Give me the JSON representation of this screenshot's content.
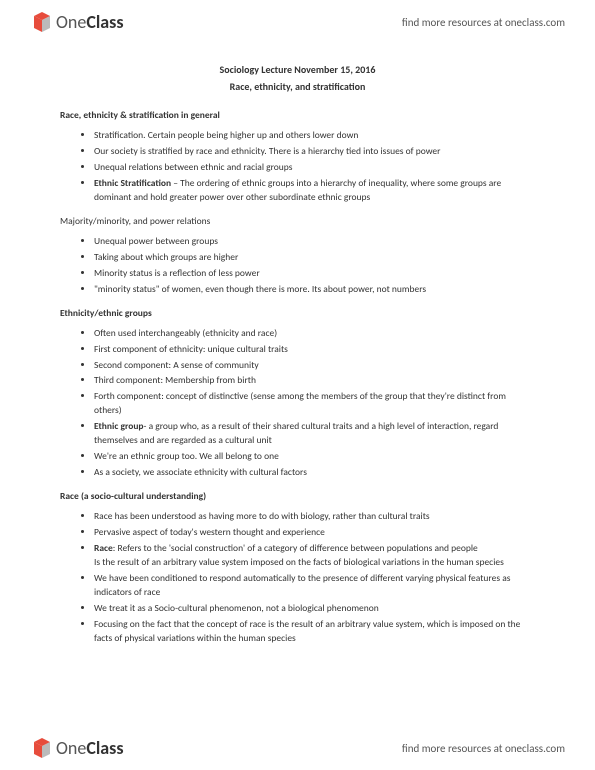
{
  "brand": {
    "name_light": "One",
    "name_bold": "Class",
    "link_text": "find more resources at oneclass.com",
    "logo_red": "#e74c3c",
    "logo_gray": "#999999"
  },
  "doc": {
    "title": "Sociology Lecture November 15, 2016",
    "subtitle": "Race, ethnicity, and stratification",
    "sections": [
      {
        "head": "Race, ethnicity & stratification in general",
        "items": [
          {
            "text": "Stratification. Certain people being higher up and others lower down"
          },
          {
            "text": "Our society is stratified by race and ethnicity. There is a hierarchy tied into issues of power"
          },
          {
            "text": "Unequal relations between ethnic and racial groups"
          },
          {
            "term": "Ethnic Stratification",
            "sep": " – ",
            "text": "The ordering of ethnic groups into a hierarchy of inequality, where some groups are dominant and hold greater power over other subordinate ethnic groups"
          }
        ]
      },
      {
        "head": "Majority/minority, and power relations",
        "plain": true,
        "items": [
          {
            "text": "Unequal power between groups"
          },
          {
            "text": "Taking about which groups are higher"
          },
          {
            "text": "Minority status is a reflection of less power"
          },
          {
            "text": "\"minority status\" of women, even though there is more. Its about power, not numbers"
          }
        ]
      },
      {
        "head": "Ethnicity/ethnic groups",
        "items": [
          {
            "text": "Often used interchangeably (ethnicity and race)"
          },
          {
            "text": "First component of ethnicity: unique cultural traits"
          },
          {
            "text": "Second component: A sense of community"
          },
          {
            "text": "Third component: Membership from birth"
          },
          {
            "text": "Forth component: concept of distinctive (sense among the members of the group that they're distinct from others)"
          },
          {
            "term": "Ethnic group",
            "sep": "- ",
            "text": "a group who, as a result of their shared cultural traits and a high level of interaction, regard themselves and are regarded as a cultural unit"
          },
          {
            "text": "We're an ethnic group too. We all belong to one"
          },
          {
            "text": "As a society, we associate ethnicity with cultural factors"
          }
        ]
      },
      {
        "head": "Race (a socio-cultural understanding)",
        "items": [
          {
            "text": "Race has been understood as having more to do with biology, rather than cultural traits"
          },
          {
            "text": "Pervasive aspect of today's western thought and experience"
          },
          {
            "term": "Race",
            "sep": ": ",
            "text": "Refers to the 'social construction' of a category of difference between populations and people",
            "cont": "Is the result of an arbitrary value system imposed on the facts of biological variations in the human species"
          },
          {
            "text": "We have been conditioned to respond automatically to the presence of different varying physical features as indicators of race"
          },
          {
            "text": "We treat it as a Socio-cultural phenomenon, not a biological phenomenon"
          },
          {
            "text": "Focusing on the fact that the concept of race is the result of an arbitrary value system, which is imposed on the facts of physical variations within the human species"
          }
        ]
      }
    ]
  },
  "style": {
    "text_color": "#333333",
    "bg": "#ffffff",
    "body_fontsize": 9.5,
    "title_fontsize": 10
  }
}
